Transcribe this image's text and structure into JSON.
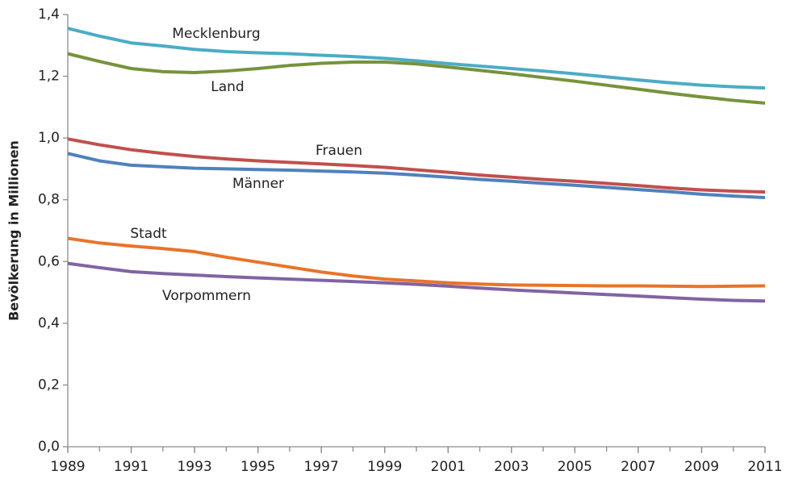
{
  "chart_data": {
    "type": "line",
    "y_label": "Bevölkerung in Millionen",
    "x": [
      1989,
      1990,
      1991,
      1992,
      1993,
      1994,
      1995,
      1996,
      1997,
      1998,
      1999,
      2000,
      2001,
      2002,
      2003,
      2004,
      2005,
      2006,
      2007,
      2008,
      2009,
      2010,
      2011
    ],
    "series": [
      {
        "name": "Mecklenburg",
        "color": "#4bacc6",
        "values": [
          1.355,
          1.33,
          1.308,
          1.298,
          1.287,
          1.28,
          1.276,
          1.273,
          1.268,
          1.264,
          1.258,
          1.25,
          1.241,
          1.233,
          1.225,
          1.217,
          1.208,
          1.198,
          1.188,
          1.179,
          1.171,
          1.166,
          1.162
        ]
      },
      {
        "name": "Land",
        "color": "#77933c",
        "values": [
          1.273,
          1.248,
          1.225,
          1.215,
          1.212,
          1.217,
          1.225,
          1.235,
          1.242,
          1.246,
          1.246,
          1.24,
          1.23,
          1.219,
          1.208,
          1.196,
          1.184,
          1.171,
          1.158,
          1.145,
          1.133,
          1.122,
          1.113
        ]
      },
      {
        "name": "Frauen",
        "color": "#c0504d",
        "values": [
          0.997,
          0.978,
          0.962,
          0.95,
          0.94,
          0.932,
          0.926,
          0.921,
          0.916,
          0.911,
          0.905,
          0.897,
          0.889,
          0.88,
          0.873,
          0.866,
          0.86,
          0.853,
          0.846,
          0.838,
          0.832,
          0.828,
          0.825
        ]
      },
      {
        "name": "Männer",
        "color": "#4f81bd",
        "values": [
          0.95,
          0.926,
          0.912,
          0.907,
          0.902,
          0.9,
          0.898,
          0.896,
          0.893,
          0.89,
          0.886,
          0.88,
          0.873,
          0.866,
          0.86,
          0.853,
          0.847,
          0.84,
          0.833,
          0.826,
          0.818,
          0.812,
          0.807
        ]
      },
      {
        "name": "Stadt",
        "color": "#e8742a",
        "values": [
          0.675,
          0.66,
          0.65,
          0.642,
          0.632,
          0.614,
          0.598,
          0.582,
          0.566,
          0.553,
          0.543,
          0.537,
          0.531,
          0.527,
          0.524,
          0.523,
          0.522,
          0.521,
          0.521,
          0.52,
          0.519,
          0.52,
          0.521
        ]
      },
      {
        "name": "Vorpommern",
        "color": "#8064a2",
        "values": [
          0.594,
          0.58,
          0.567,
          0.561,
          0.556,
          0.551,
          0.547,
          0.543,
          0.539,
          0.535,
          0.531,
          0.526,
          0.52,
          0.514,
          0.508,
          0.503,
          0.498,
          0.493,
          0.488,
          0.483,
          0.478,
          0.474,
          0.472
        ]
      }
    ],
    "xlim": [
      1989,
      2011
    ],
    "xticks": [
      1989,
      1991,
      1993,
      1995,
      1997,
      1999,
      2001,
      2003,
      2005,
      2007,
      2009,
      2011
    ],
    "ylim": [
      0,
      1.4
    ],
    "yticks": [
      {
        "value": 0,
        "label": "0,0"
      },
      {
        "value": 0.2,
        "label": "0,2"
      },
      {
        "value": 0.4,
        "label": "0,4"
      },
      {
        "value": 0.6,
        "label": "0,6"
      },
      {
        "value": 0.8,
        "label": "0,8"
      },
      {
        "value": 1.0,
        "label": "1,0"
      },
      {
        "value": 1.2,
        "label": "1,2"
      },
      {
        "value": 1.4,
        "label": "1,4"
      }
    ],
    "grid": false
  }
}
